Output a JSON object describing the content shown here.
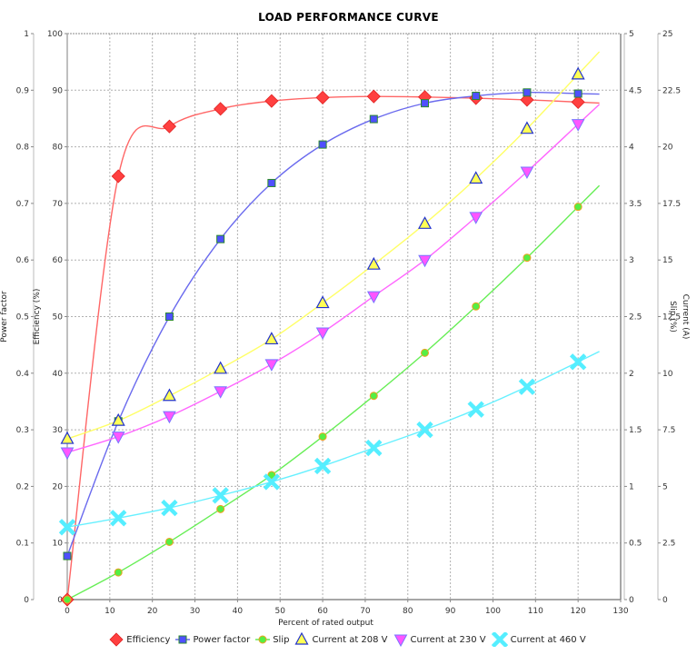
{
  "chart_data": {
    "type": "line",
    "title": "LOAD PERFORMANCE CURVE",
    "xlabel": "Percent of rated output",
    "xlim": [
      0,
      130
    ],
    "x_ticks": [
      0,
      10,
      20,
      30,
      40,
      50,
      60,
      70,
      80,
      90,
      100,
      110,
      120,
      130
    ],
    "grid": true,
    "legend_position": "bottom",
    "axes": {
      "power_factor": {
        "label": "Power factor",
        "side": "left-outer",
        "ylim": [
          0,
          1
        ],
        "ticks": [
          "0",
          "0.1",
          "0.2",
          "0.3",
          "0.4",
          "0.5",
          "0.6",
          "0.7",
          "0.8",
          "0.9",
          "1"
        ]
      },
      "efficiency": {
        "label": "Efficiency (%)",
        "side": "left-inner",
        "ylim": [
          0,
          100
        ],
        "ticks": [
          "0",
          "10",
          "20",
          "30",
          "40",
          "50",
          "60",
          "70",
          "80",
          "90",
          "100"
        ]
      },
      "slip": {
        "label": "Slip (%)",
        "side": "right-inner",
        "ylim": [
          0,
          5
        ],
        "ticks": [
          "0",
          "0.5",
          "1",
          "1.5",
          "2",
          "2.5",
          "3",
          "3.5",
          "4",
          "4.5",
          "5"
        ]
      },
      "current": {
        "label": "Current (A)",
        "side": "right-outer",
        "ylim": [
          0,
          25
        ],
        "ticks": [
          "0",
          "2.5",
          "5",
          "7.5",
          "10",
          "12.5",
          "15",
          "17.5",
          "20",
          "22.5",
          "25"
        ]
      }
    },
    "x": [
      0,
      12,
      24,
      36,
      48,
      60,
      72,
      84,
      96,
      108,
      120
    ],
    "series": [
      {
        "name": "Efficiency",
        "axis": "efficiency",
        "color": "#ff4040",
        "line_color": "#ff6666",
        "marker": "diamond",
        "values": [
          0,
          74.8,
          83.6,
          86.7,
          88.1,
          88.7,
          88.9,
          88.8,
          88.6,
          88.3,
          87.9
        ]
      },
      {
        "name": "Power factor",
        "axis": "power_factor",
        "color": "#4f4fff",
        "line_color": "#6a6aee",
        "marker": "square",
        "values": [
          0.077,
          0.315,
          0.5,
          0.637,
          0.736,
          0.804,
          0.849,
          0.877,
          0.89,
          0.896,
          0.894
        ]
      },
      {
        "name": "Slip",
        "axis": "slip",
        "color": "#55ee44",
        "line_color": "#66ee55",
        "marker": "circle",
        "values": [
          0,
          0.24,
          0.51,
          0.8,
          1.1,
          1.44,
          1.8,
          2.18,
          2.59,
          3.02,
          3.47
        ]
      },
      {
        "name": "Current at 208 V",
        "axis": "current",
        "color": "#ffff55",
        "line_color": "#ffff66",
        "marker": "triangle-up",
        "values": [
          7.1,
          7.9,
          9.0,
          10.2,
          11.5,
          13.1,
          14.8,
          16.6,
          18.6,
          20.8,
          23.2
        ]
      },
      {
        "name": "Current at 230 V",
        "axis": "current",
        "color": "#ff55ff",
        "line_color": "#ff66ff",
        "marker": "triangle-down",
        "values": [
          6.5,
          7.2,
          8.1,
          9.2,
          10.4,
          11.8,
          13.4,
          15.0,
          16.9,
          18.9,
          21.0
        ]
      },
      {
        "name": "Current at 460 V",
        "axis": "current",
        "color": "#55eeff",
        "line_color": "#66f0ff",
        "marker": "x",
        "values": [
          3.2,
          3.6,
          4.05,
          4.6,
          5.2,
          5.9,
          6.7,
          7.5,
          8.4,
          9.4,
          10.5
        ]
      }
    ]
  }
}
